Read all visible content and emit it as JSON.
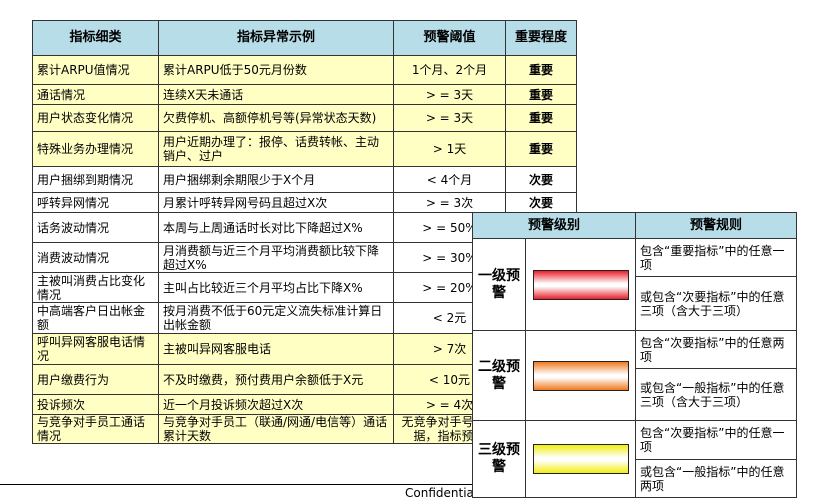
{
  "main_table": {
    "headers": [
      "指标细类",
      "指标异常示例",
      "预警阈值",
      "重要程度"
    ],
    "rows": [
      {
        "category": "累计ARPU值情况",
        "example": "累计ARPU低于50元月份数",
        "threshold": "1个月、2个月",
        "importance": "重要"
      },
      {
        "category": "通话情况",
        "example": "连续X天未通话",
        "threshold": "> = 3天",
        "importance": "重要"
      },
      {
        "category": "用户状态变化情况",
        "example": "欠费停机、高额停机号等(异常状态天数)",
        "threshold": "> = 3天",
        "importance": "重要"
      },
      {
        "category": "特殊业务办理情况",
        "example": "用户近期办理了：报停、话费转帐、主动销户、过户",
        "threshold": "> 1天",
        "importance": "重要"
      },
      {
        "category": "用户捆绑到期情况",
        "example": "用户捆绑剩余期限少于X个月",
        "threshold": "< 4个月",
        "importance": "次要"
      },
      {
        "category": "呼转异网情况",
        "example": "月累计呼转异网号码且超过X次",
        "threshold": "> = 3次",
        "importance": "次要"
      },
      {
        "category": "话务波动情况",
        "example": "本周与上周通话时长对比下降超过X%",
        "threshold": "> = 50%",
        "importance": ""
      },
      {
        "category": "消费波动情况",
        "example": "月消费额与近三个月平均消费额比较下降超过X%",
        "threshold": "> = 30%",
        "importance": ""
      },
      {
        "category": "主被叫消费占比变化情况",
        "example": "主叫占比较近三个月平均占比下降X%",
        "threshold": "> = 20%",
        "importance": ""
      },
      {
        "category": "中高端客户日出帐金额",
        "example": "按月消费不低于60元定义流失标准计算日出帐金额",
        "threshold": "< 2元",
        "importance": ""
      },
      {
        "category": "呼叫异网客服电话情况",
        "example": "主被叫异网客服电话",
        "threshold": "> 7次",
        "importance": ""
      },
      {
        "category": "用户缴费行为",
        "example": "不及时缴费，预付费用户余额低于X元",
        "threshold": "< 10元",
        "importance": ""
      },
      {
        "category": "投诉频次",
        "example": "近一个月投诉频次超过X次",
        "threshold": "> = 4次",
        "importance": ""
      },
      {
        "category": "与竞争对手员工通话情况",
        "example": "与竞争对手员工（联通/网通/电信等）通话累计天数",
        "threshold": "无竞争对手号码数据，指标预留",
        "importance": ""
      }
    ]
  },
  "warning_table": {
    "headers": [
      "预警级别",
      "预警规则"
    ],
    "levels": [
      {
        "label": "一级预警",
        "color": "#e8202a",
        "rules": [
          "包含“重要指标”中的任意一项",
          "或包含“次要指标”中的任意三项（含大于三项）"
        ]
      },
      {
        "label": "二级预警",
        "color": "#f07a20",
        "rules": [
          "包含“次要指标”中的任意两项",
          "或包含“一般指标”中的任意三项（含大于三项）"
        ]
      },
      {
        "label": "三级预警",
        "color": "#f2ee10",
        "rules": [
          "包含“次要指标”中的任意一项",
          "或包含“一般指标”中的任意两项"
        ]
      }
    ]
  },
  "footer": {
    "text": "Confidential"
  }
}
